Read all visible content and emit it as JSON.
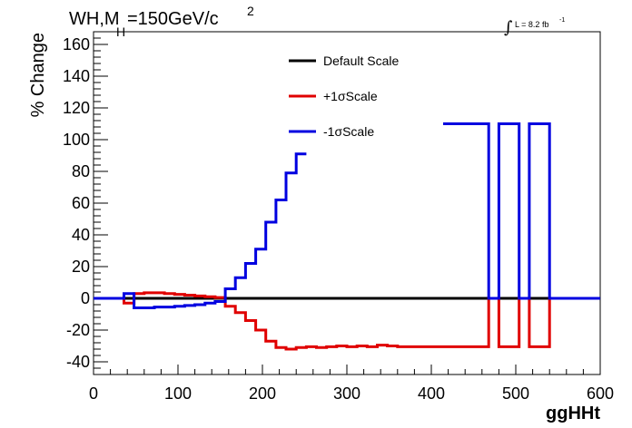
{
  "chart_data": {
    "type": "line",
    "title_main": "WH,M",
    "title_sub": "H",
    "title_rest": "=150GeV/c",
    "title_sup": "2",
    "lumi_symbol": "∫",
    "lumi_text": "L = 8.2 fb",
    "lumi_sup": "-1",
    "xlabel": "ggHHt",
    "ylabel": "% Change",
    "xlim": [
      0,
      600
    ],
    "ylim": [
      -48,
      168
    ],
    "xticks": [
      0,
      100,
      200,
      300,
      400,
      500,
      600
    ],
    "yticks": [
      -40,
      -20,
      0,
      20,
      40,
      60,
      80,
      100,
      120,
      140,
      160
    ],
    "legend_position": "top-center",
    "series": [
      {
        "name": "Default Scale",
        "color": "#000000",
        "x": [
          0,
          600
        ],
        "y": [
          0,
          0
        ]
      },
      {
        "name": "+1σScale",
        "color": "#e00000",
        "x": [
          0,
          36,
          36,
          48,
          48,
          60,
          60,
          84,
          84,
          96,
          96,
          108,
          108,
          120,
          120,
          132,
          132,
          144,
          144,
          156,
          156,
          168,
          168,
          180,
          180,
          192,
          192,
          204,
          204,
          216,
          216,
          228,
          228,
          240,
          240,
          252,
          252,
          264,
          264,
          276,
          276,
          288,
          288,
          300,
          300,
          312,
          312,
          324,
          324,
          336,
          336,
          348,
          348,
          360,
          360,
          372,
          372,
          468,
          468,
          480,
          480,
          504,
          504,
          516,
          516,
          540,
          540,
          600
        ],
        "y": [
          0,
          0,
          -3,
          -3,
          3,
          3,
          3.5,
          3.5,
          3,
          3,
          2.5,
          2.5,
          2,
          2,
          1.5,
          1.5,
          1,
          1,
          0.5,
          0.5,
          -5,
          -5,
          -9,
          -9,
          -14,
          -14,
          -20,
          -20,
          -27,
          -27,
          -31,
          -31,
          -32,
          -32,
          -31,
          -31,
          -30.5,
          -30.5,
          -31,
          -31,
          -30.5,
          -30.5,
          -30,
          -30,
          -30.5,
          -30.5,
          -30,
          -30,
          -30.5,
          -30.5,
          -29.5,
          -29.5,
          -30,
          -30,
          -30.5,
          -30.5,
          -30.5,
          -30.5,
          0,
          0,
          -30.5,
          -30.5,
          0,
          0,
          -30.5,
          -30.5,
          0,
          0
        ]
      },
      {
        "name": "-1σScale",
        "color": "#0000e0",
        "x": [
          0,
          36,
          36,
          48,
          48,
          72,
          72,
          96,
          96,
          108,
          108,
          120,
          120,
          132,
          132,
          144,
          144,
          156,
          156,
          168,
          168,
          180,
          180,
          192,
          192,
          204,
          204,
          216,
          216,
          228,
          228,
          240,
          240,
          252
        ],
        "y": [
          0,
          0,
          3,
          3,
          -6,
          -6,
          -5.5,
          -5.5,
          -5,
          -5,
          -4.5,
          -4.5,
          -4,
          -4,
          -3,
          -3,
          -2,
          -2,
          6,
          6,
          13,
          13,
          22,
          22,
          31,
          31,
          48,
          48,
          62,
          62,
          79,
          79,
          91,
          91
        ]
      },
      {
        "name": "-1σScale",
        "color": "#0000e0",
        "x": [
          414,
          468,
          468,
          480,
          480,
          504,
          504,
          516,
          516,
          540,
          540,
          600
        ],
        "y": [
          110,
          110,
          0,
          0,
          110,
          110,
          0,
          0,
          110,
          110,
          0,
          0
        ]
      }
    ]
  }
}
